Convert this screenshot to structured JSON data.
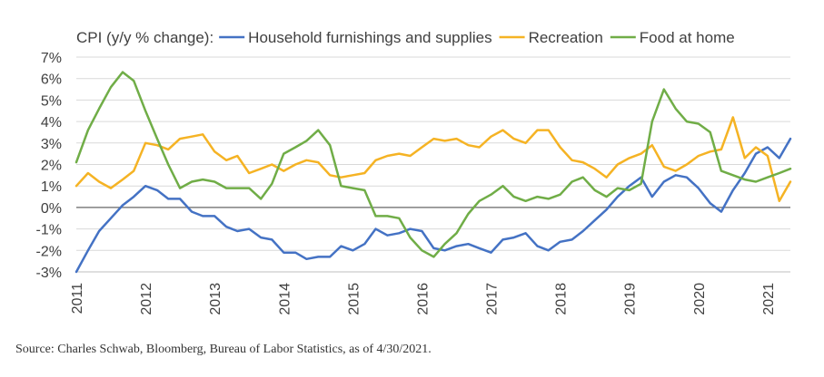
{
  "chart_data": {
    "type": "line",
    "title": "CPI (y/y % change):",
    "xlabel": "",
    "ylabel": "",
    "xlim": [
      2011.0,
      2021.33
    ],
    "ylim": [
      -3,
      7
    ],
    "y_ticks": [
      -3,
      -2,
      -1,
      0,
      1,
      2,
      3,
      4,
      5,
      6,
      7
    ],
    "y_tick_labels": [
      "-3%",
      "-2%",
      "-1%",
      "0%",
      "1%",
      "2%",
      "3%",
      "4%",
      "5%",
      "6%",
      "7%"
    ],
    "x_ticks": [
      2011,
      2012,
      2013,
      2014,
      2015,
      2016,
      2017,
      2018,
      2019,
      2020,
      2021
    ],
    "x_tick_labels": [
      "2011",
      "2012",
      "2013",
      "2014",
      "2015",
      "2016",
      "2017",
      "2018",
      "2019",
      "2020",
      "2021"
    ],
    "grid": "horizontal",
    "legend": "top",
    "series": [
      {
        "name": "Household furnishings and supplies",
        "color": "#4472C4",
        "x": [
          2011.0,
          2011.17,
          2011.33,
          2011.5,
          2011.67,
          2011.83,
          2012.0,
          2012.17,
          2012.33,
          2012.5,
          2012.67,
          2012.83,
          2013.0,
          2013.17,
          2013.33,
          2013.5,
          2013.67,
          2013.83,
          2014.0,
          2014.17,
          2014.33,
          2014.5,
          2014.67,
          2014.83,
          2015.0,
          2015.17,
          2015.33,
          2015.5,
          2015.67,
          2015.83,
          2016.0,
          2016.17,
          2016.33,
          2016.5,
          2016.67,
          2016.83,
          2017.0,
          2017.17,
          2017.33,
          2017.5,
          2017.67,
          2017.83,
          2018.0,
          2018.17,
          2018.33,
          2018.5,
          2018.67,
          2018.83,
          2019.0,
          2019.17,
          2019.33,
          2019.5,
          2019.67,
          2019.83,
          2020.0,
          2020.17,
          2020.33,
          2020.5,
          2020.67,
          2020.83,
          2021.0,
          2021.17,
          2021.33
        ],
        "y": [
          -3.0,
          -2.0,
          -1.1,
          -0.5,
          0.1,
          0.5,
          1.0,
          0.8,
          0.4,
          0.4,
          -0.2,
          -0.4,
          -0.4,
          -0.9,
          -1.1,
          -1.0,
          -1.4,
          -1.5,
          -2.1,
          -2.1,
          -2.4,
          -2.3,
          -2.3,
          -1.8,
          -2.0,
          -1.7,
          -1.0,
          -1.3,
          -1.2,
          -1.0,
          -1.1,
          -1.9,
          -2.0,
          -1.8,
          -1.7,
          -1.9,
          -2.1,
          -1.5,
          -1.4,
          -1.2,
          -1.8,
          -2.0,
          -1.6,
          -1.5,
          -1.1,
          -0.6,
          -0.1,
          0.5,
          1.0,
          1.4,
          0.5,
          1.2,
          1.5,
          1.4,
          0.9,
          0.2,
          -0.2,
          0.8,
          1.6,
          2.5,
          2.8,
          2.3,
          3.2
        ]
      },
      {
        "name": "Recreation",
        "color": "#F5B324",
        "x": [
          2011.0,
          2011.17,
          2011.33,
          2011.5,
          2011.67,
          2011.83,
          2012.0,
          2012.17,
          2012.33,
          2012.5,
          2012.67,
          2012.83,
          2013.0,
          2013.17,
          2013.33,
          2013.5,
          2013.67,
          2013.83,
          2014.0,
          2014.17,
          2014.33,
          2014.5,
          2014.67,
          2014.83,
          2015.0,
          2015.17,
          2015.33,
          2015.5,
          2015.67,
          2015.83,
          2016.0,
          2016.17,
          2016.33,
          2016.5,
          2016.67,
          2016.83,
          2017.0,
          2017.17,
          2017.33,
          2017.5,
          2017.67,
          2017.83,
          2018.0,
          2018.17,
          2018.33,
          2018.5,
          2018.67,
          2018.83,
          2019.0,
          2019.17,
          2019.33,
          2019.5,
          2019.67,
          2019.83,
          2020.0,
          2020.17,
          2020.33,
          2020.5,
          2020.67,
          2020.83,
          2021.0,
          2021.17,
          2021.33
        ],
        "y": [
          1.0,
          1.6,
          1.2,
          0.9,
          1.3,
          1.7,
          3.0,
          2.9,
          2.7,
          3.2,
          3.3,
          3.4,
          2.6,
          2.2,
          2.4,
          1.6,
          1.8,
          2.0,
          1.7,
          2.0,
          2.2,
          2.1,
          1.5,
          1.4,
          1.5,
          1.6,
          2.2,
          2.4,
          2.5,
          2.4,
          2.8,
          3.2,
          3.1,
          3.2,
          2.9,
          2.8,
          3.3,
          3.6,
          3.2,
          3.0,
          3.6,
          3.6,
          2.8,
          2.2,
          2.1,
          1.8,
          1.4,
          2.0,
          2.3,
          2.5,
          2.9,
          1.9,
          1.7,
          2.0,
          2.4,
          2.6,
          2.7,
          4.2,
          2.3,
          2.8,
          2.4,
          0.3,
          1.2
        ]
      },
      {
        "name": "Food at home",
        "color": "#70AD47",
        "x": [
          2011.0,
          2011.17,
          2011.33,
          2011.5,
          2011.67,
          2011.83,
          2012.0,
          2012.17,
          2012.33,
          2012.5,
          2012.67,
          2012.83,
          2013.0,
          2013.17,
          2013.33,
          2013.5,
          2013.67,
          2013.83,
          2014.0,
          2014.17,
          2014.33,
          2014.5,
          2014.67,
          2014.83,
          2015.0,
          2015.17,
          2015.33,
          2015.5,
          2015.67,
          2015.83,
          2016.0,
          2016.17,
          2016.33,
          2016.5,
          2016.67,
          2016.83,
          2017.0,
          2017.17,
          2017.33,
          2017.5,
          2017.67,
          2017.83,
          2018.0,
          2018.17,
          2018.33,
          2018.5,
          2018.67,
          2018.83,
          2019.0,
          2019.17,
          2019.33,
          2019.5,
          2019.67,
          2019.83,
          2020.0,
          2020.17,
          2020.33,
          2020.5,
          2020.67,
          2020.83,
          2021.0,
          2021.17,
          2021.33
        ],
        "y": [
          2.1,
          3.6,
          4.6,
          5.6,
          6.3,
          5.9,
          4.5,
          3.2,
          2.0,
          0.9,
          1.2,
          1.3,
          1.2,
          0.9,
          0.9,
          0.9,
          0.4,
          1.1,
          2.5,
          2.8,
          3.1,
          3.6,
          2.9,
          1.0,
          0.9,
          0.8,
          -0.4,
          -0.4,
          -0.5,
          -1.4,
          -2.0,
          -2.3,
          -1.7,
          -1.2,
          -0.3,
          0.3,
          0.6,
          1.0,
          0.5,
          0.3,
          0.5,
          0.4,
          0.6,
          1.2,
          1.4,
          0.8,
          0.5,
          0.9,
          0.8,
          1.1,
          4.0,
          5.5,
          4.6,
          4.0,
          3.9,
          3.5,
          1.7,
          1.5,
          1.3,
          1.2,
          1.4,
          1.6,
          1.8
        ]
      }
    ]
  },
  "source_note": "Source: Charles Schwab, Bloomberg, Bureau of Labor Statistics, as of 4/30/2021."
}
